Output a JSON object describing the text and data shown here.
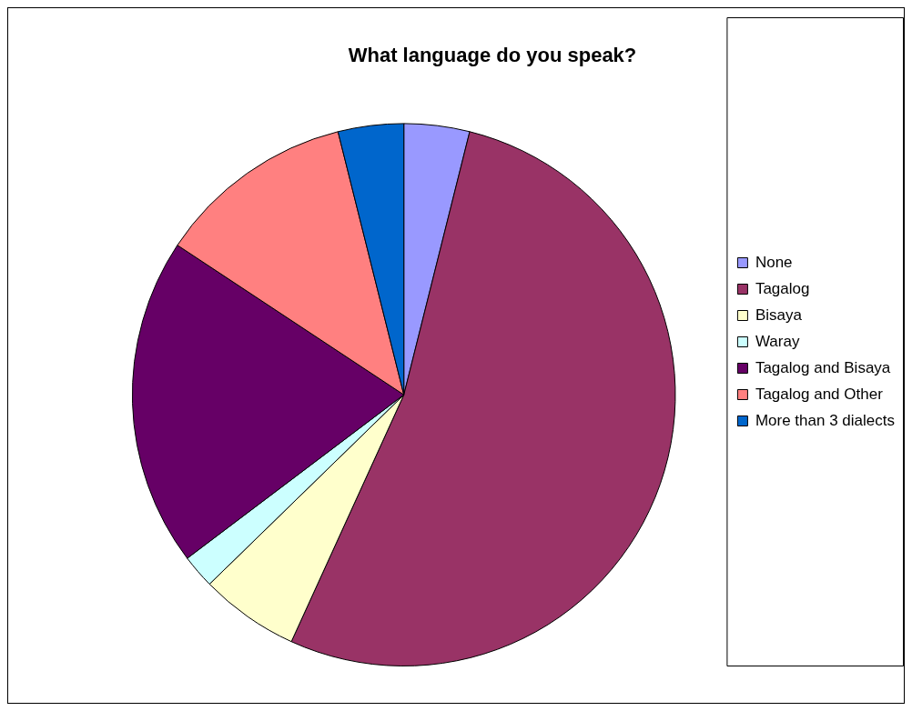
{
  "chart_data": {
    "type": "pie",
    "title": "What language do you speak?",
    "categories": [
      "None",
      "Tagalog",
      "Bisaya",
      "Waray",
      "Tagalog and Bisaya",
      "Tagalog and Other",
      "More than 3 dialects"
    ],
    "values": [
      3.9,
      52.9,
      5.9,
      2.0,
      19.6,
      11.8,
      3.9
    ],
    "colors": [
      "#9999ff",
      "#993366",
      "#ffffcc",
      "#ccffff",
      "#660066",
      "#ff8080",
      "#0066cc"
    ],
    "legend": "right"
  }
}
